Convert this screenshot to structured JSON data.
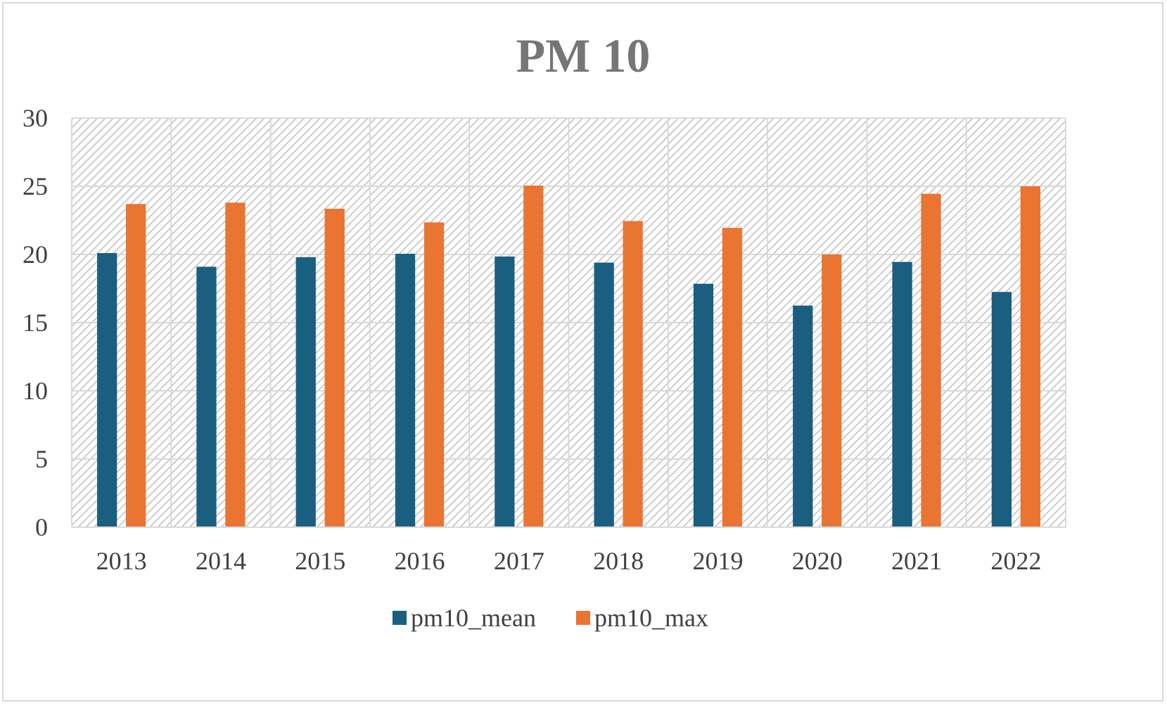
{
  "chart_data": {
    "type": "bar",
    "title": "PM 10",
    "xlabel": "",
    "ylabel": "",
    "categories": [
      "2013",
      "2014",
      "2015",
      "2016",
      "2017",
      "2018",
      "2019",
      "2020",
      "2021",
      "2022"
    ],
    "series": [
      {
        "name": "pm10_mean",
        "color": "#1a5f80",
        "values": [
          20.1,
          19.1,
          19.8,
          20.05,
          19.85,
          19.4,
          17.85,
          16.25,
          19.45,
          17.25
        ]
      },
      {
        "name": "pm10_max",
        "color": "#ea7432",
        "values": [
          23.7,
          23.8,
          23.35,
          22.35,
          25.05,
          22.45,
          21.95,
          20.0,
          24.45,
          25.0
        ]
      }
    ],
    "ylim": [
      0,
      30
    ],
    "yticks": [
      "0",
      "5",
      "10",
      "15",
      "20",
      "25",
      "30"
    ],
    "grid": true,
    "legend_position": "bottom"
  }
}
